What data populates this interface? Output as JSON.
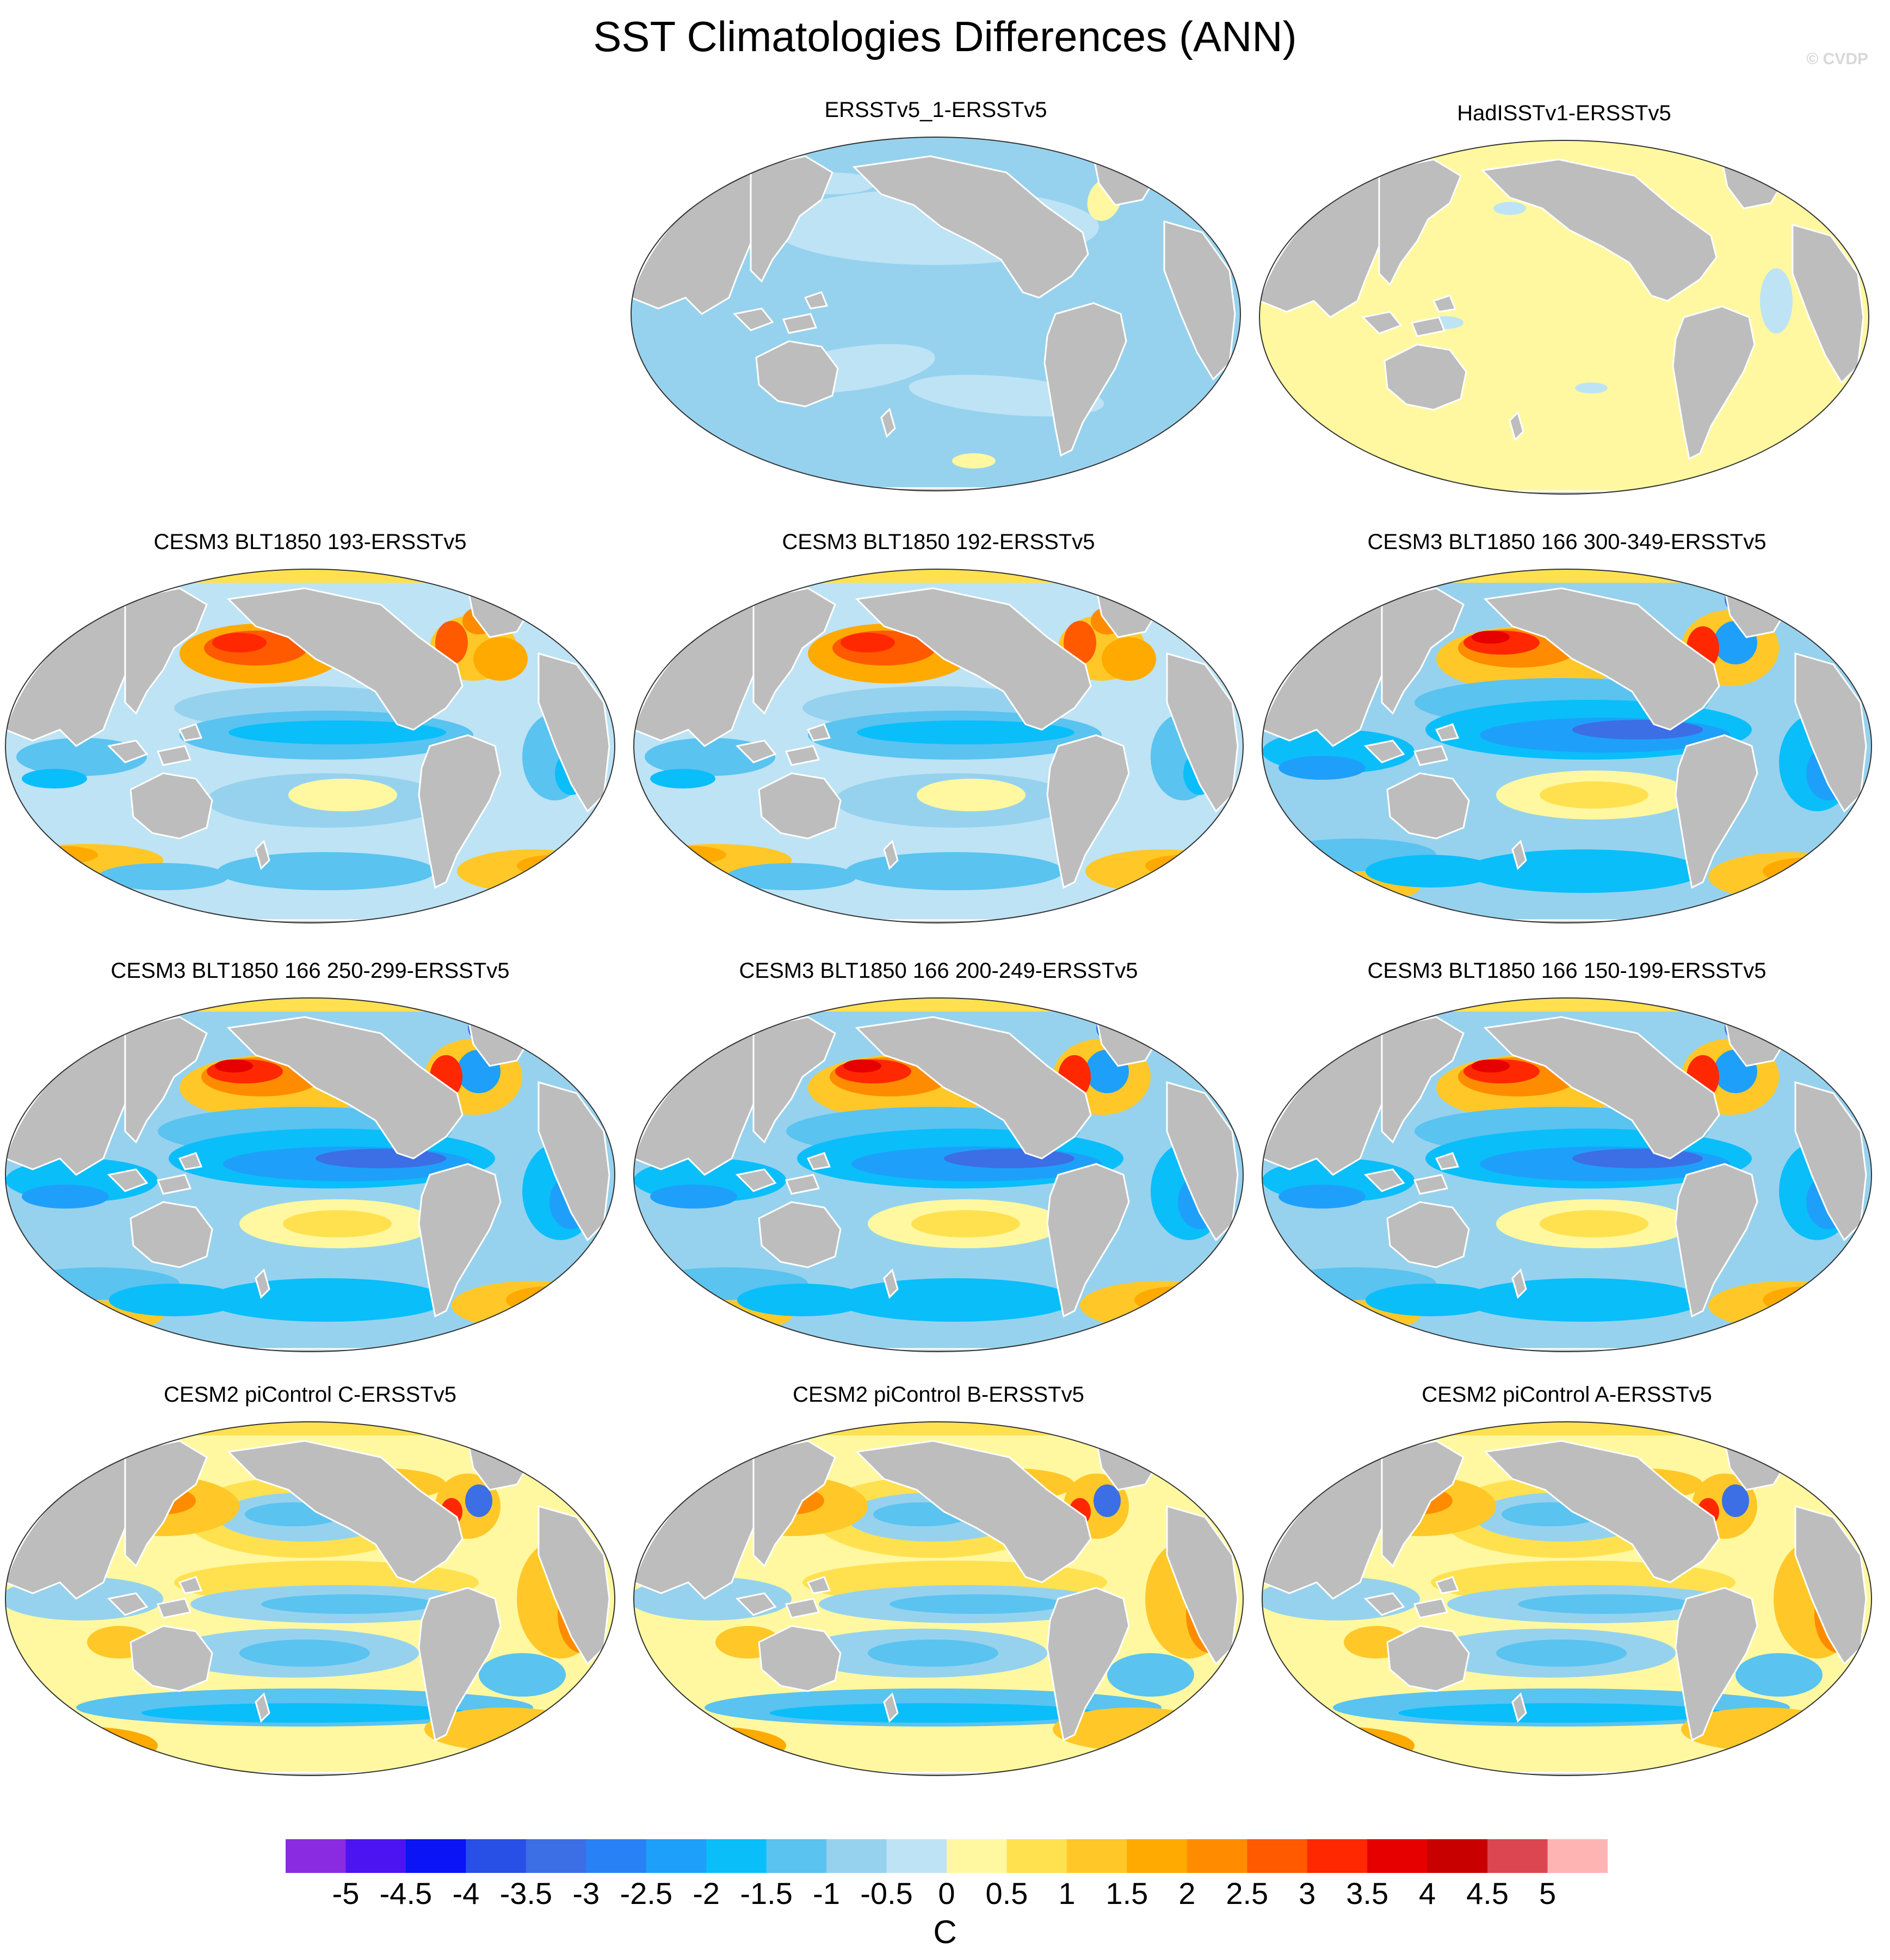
{
  "title": "SST Climatologies Differences (ANN)",
  "watermark": "© CVDP",
  "panels": [
    {
      "title": "ERSSTv5_1-ERSSTv5",
      "pattern": "uniform-cool"
    },
    {
      "title": "HadISSTv1-ERSSTv5",
      "pattern": "uniform-warm"
    },
    {
      "title": "CESM3 BLT1850 193-ERSSTv5",
      "pattern": "cesm3-weak"
    },
    {
      "title": "CESM3 BLT1850 192-ERSSTv5",
      "pattern": "cesm3-weak"
    },
    {
      "title": "CESM3 BLT1850 166 300-349-ERSSTv5",
      "pattern": "cesm3-strong"
    },
    {
      "title": "CESM3 BLT1850 166 250-299-ERSSTv5",
      "pattern": "cesm3-strong"
    },
    {
      "title": "CESM3 BLT1850 166 200-249-ERSSTv5",
      "pattern": "cesm3-strong"
    },
    {
      "title": "CESM3 BLT1850 166 150-199-ERSSTv5",
      "pattern": "cesm3-strong"
    },
    {
      "title": "CESM2 piControl C-ERSSTv5",
      "pattern": "cesm2"
    },
    {
      "title": "CESM2 piControl B-ERSSTv5",
      "pattern": "cesm2"
    },
    {
      "title": "CESM2 piControl A-ERSSTv5",
      "pattern": "cesm2"
    }
  ],
  "colorbar": {
    "unit": "C",
    "labels": [
      "-5",
      "-4.5",
      "-4",
      "-3.5",
      "-3",
      "-2.5",
      "-2",
      "-1.5",
      "-1",
      "-0.5",
      "0",
      "0.5",
      "1",
      "1.5",
      "2",
      "2.5",
      "3",
      "3.5",
      "4",
      "4.5",
      "5"
    ],
    "colors": [
      "#8a2be2",
      "#4b14f0",
      "#0a14f5",
      "#2850e6",
      "#3c6ee6",
      "#2882f5",
      "#1ea0fa",
      "#0abefa",
      "#5ac3f0",
      "#96d2ee",
      "#bde3f5",
      "#fff8a0",
      "#ffe150",
      "#ffc828",
      "#ffaa00",
      "#ff8c00",
      "#ff5a00",
      "#ff2800",
      "#e60000",
      "#c80000",
      "#dc4650",
      "#ffb4b4"
    ]
  }
}
